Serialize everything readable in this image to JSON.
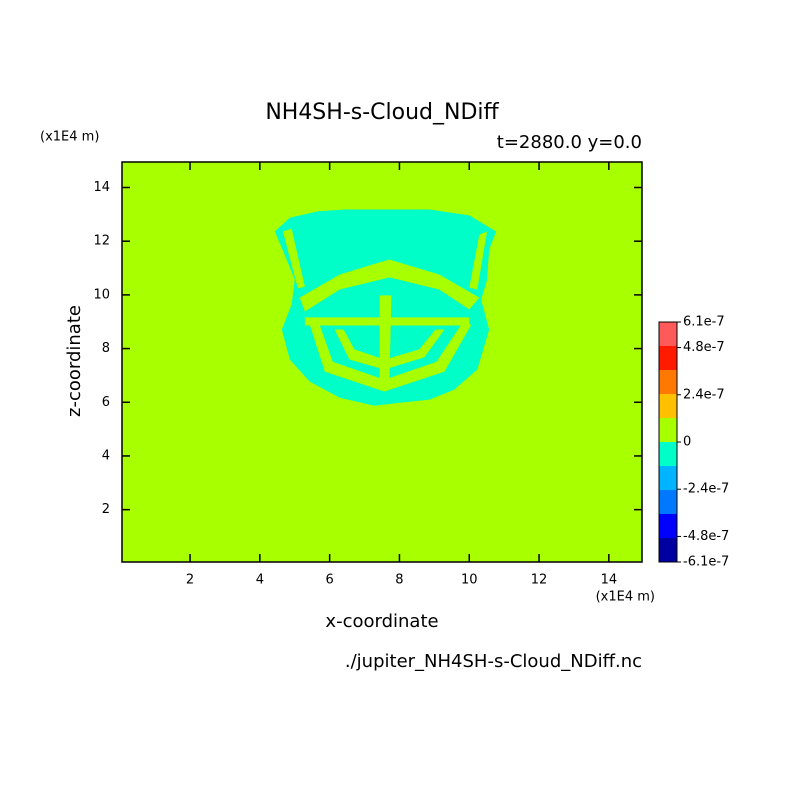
{
  "chart_data": {
    "type": "contour",
    "title": "NH4SH-s-Cloud_NDiff",
    "subtitle": "t=2880.0 y=0.0",
    "y_unit": "(x1E4 m)",
    "x_unit": "(x1E4 m)",
    "xlabel": "x-coordinate",
    "ylabel": "z-coordinate",
    "source": "./jupiter_NH4SH-s-Cloud_NDiff.nc",
    "xlim": [
      0.05,
      14.95
    ],
    "ylim": [
      0.05,
      14.95
    ],
    "xticks": [
      2,
      4,
      6,
      8,
      10,
      12,
      14
    ],
    "yticks": [
      2,
      4,
      6,
      8,
      10,
      12,
      14
    ],
    "background_color": "#a8ff00",
    "levels": [
      -6.1e-07,
      -4.88e-07,
      -3.66e-07,
      -2.44e-07,
      -1.22e-07,
      0,
      1.22e-07,
      2.44e-07,
      3.66e-07,
      4.88e-07,
      6.1e-07
    ],
    "level_colors": [
      "#0000a0",
      "#0000ff",
      "#0078ff",
      "#00b4ff",
      "#00ffc8",
      "#a8ff00",
      "#ffc000",
      "#ff7800",
      "#ff1a00",
      "#ff5a5a"
    ],
    "colorbar_ticks": [
      {
        "value": 6.1e-07,
        "label": "6.1e-7"
      },
      {
        "value": 4.8e-07,
        "label": "4.8e-7"
      },
      {
        "value": 2.4e-07,
        "label": "2.4e-7"
      },
      0,
      {
        "value": -2.4e-07,
        "label": "-2.4e-7"
      },
      {
        "value": -4.8e-07,
        "label": "-4.8e-7"
      },
      {
        "value": -6.1e-07,
        "label": "-6.1e-7"
      }
    ],
    "regions": [
      {
        "color": "#00ffc8",
        "x": [
          4.43,
          4.86,
          5.66,
          6.43,
          8.86,
          10.0,
          10.77,
          10.57,
          10.51,
          10.34,
          10.57,
          10.23,
          9.57,
          8.86,
          8.0,
          7.29,
          6.29,
          5.43,
          4.86,
          4.63,
          4.91,
          5.0,
          4.71
        ],
        "z": [
          12.36,
          12.88,
          13.11,
          13.18,
          13.18,
          12.96,
          12.36,
          11.69,
          10.57,
          9.82,
          8.71,
          7.22,
          6.47,
          6.1,
          5.98,
          5.87,
          6.17,
          6.77,
          7.59,
          8.71,
          9.64,
          10.57,
          11.5
        ]
      },
      {
        "color": "#a8ff00",
        "x": [
          5.14,
          6.29,
          7.71,
          9.14,
          10.29,
          10.0,
          9.14,
          7.71,
          6.29,
          5.29
        ],
        "z": [
          9.9,
          10.76,
          11.32,
          10.76,
          9.9,
          9.46,
          10.2,
          10.65,
          10.2,
          9.38
        ]
      },
      {
        "color": "#a8ff00",
        "x": [
          4.66,
          4.91,
          5.29,
          5.09
        ],
        "z": [
          12.36,
          12.47,
          10.31,
          10.24
        ]
      },
      {
        "color": "#a8ff00",
        "x": [
          10.29,
          10.51,
          10.23,
          10.0
        ],
        "z": [
          12.25,
          12.36,
          10.2,
          10.27
        ]
      },
      {
        "color": "#a8ff00",
        "x": [
          5.43,
          5.86,
          7.57,
          9.29,
          10.06,
          9.77,
          9.06,
          7.57,
          6.09,
          5.71
        ],
        "z": [
          8.89,
          7.14,
          6.4,
          7.14,
          8.89,
          8.89,
          7.51,
          6.84,
          7.51,
          8.89
        ]
      },
      {
        "color": "#a8ff00",
        "x": [
          6.14,
          6.57,
          7.57,
          8.71,
          9.29,
          9.03,
          8.57,
          7.57,
          6.71,
          6.4
        ],
        "z": [
          8.71,
          7.59,
          7.22,
          7.67,
          8.71,
          8.71,
          7.97,
          7.59,
          7.97,
          8.71
        ]
      },
      {
        "color": "#a8ff00",
        "x": [
          7.43,
          7.77,
          7.71,
          7.43
        ],
        "z": [
          9.98,
          9.98,
          6.66,
          6.66
        ]
      },
      {
        "color": "#a8ff00",
        "x": [
          5.29,
          10.0,
          10.0,
          5.29
        ],
        "z": [
          9.16,
          9.16,
          8.86,
          8.86
        ]
      }
    ]
  }
}
